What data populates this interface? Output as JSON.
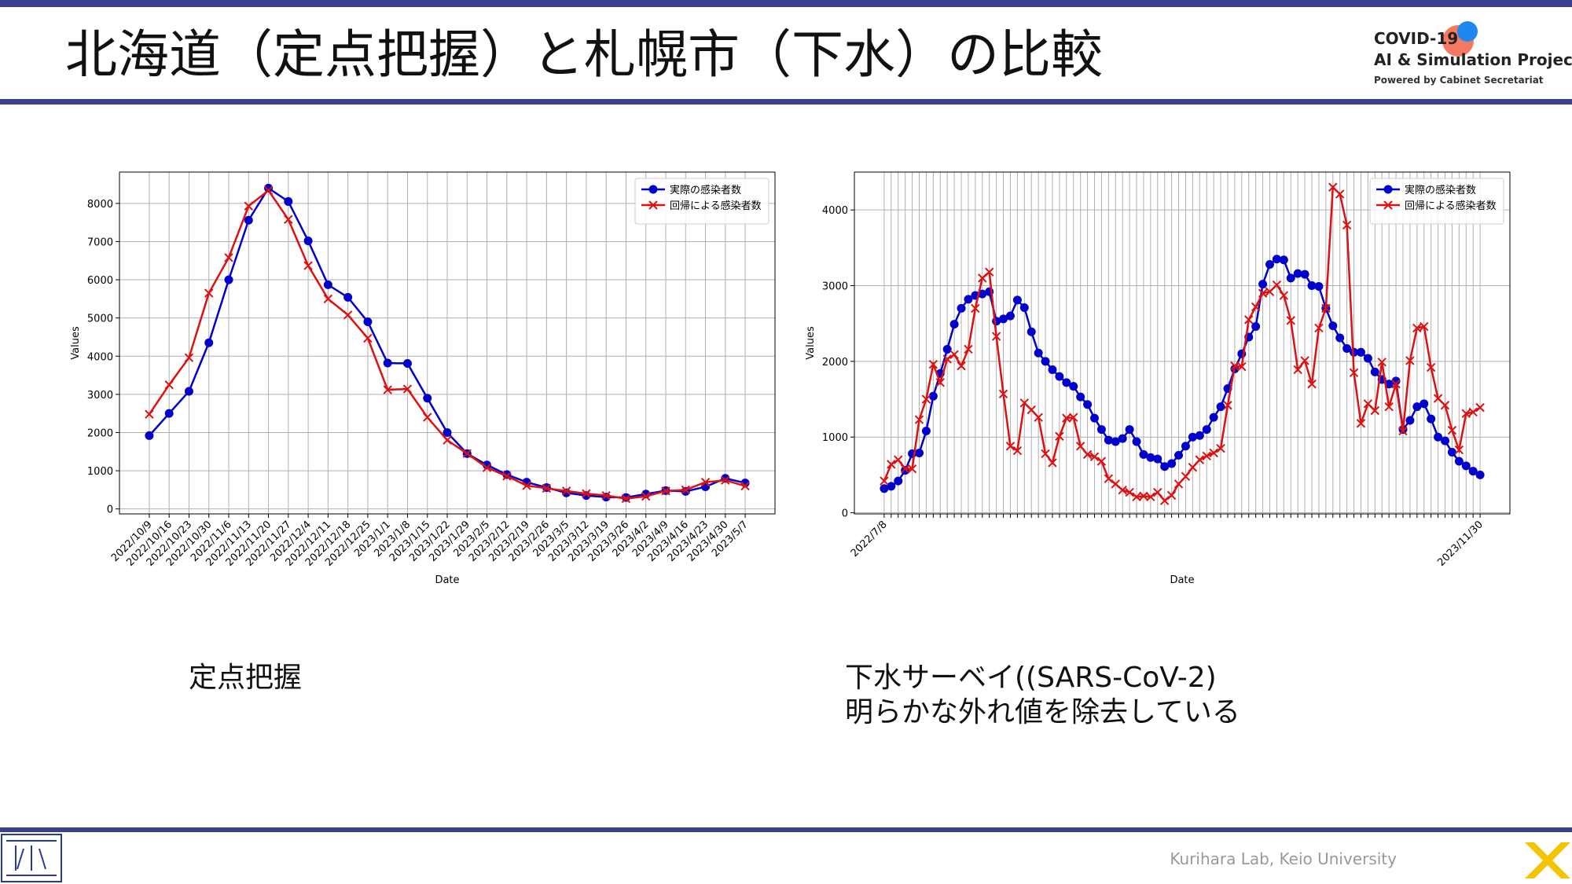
{
  "header": {
    "title": "北海道（定点把握）と札幌市（下水）の比較",
    "logo": {
      "line1": "COVID-19",
      "line2": "AI & Simulation Project",
      "line3": "Powered by Cabinet Secretariat"
    }
  },
  "chart_data": [
    {
      "type": "line",
      "xlabel": "Date",
      "ylabel": "Values",
      "grid": true,
      "legend": "upper right",
      "categories": [
        "2022/10/9",
        "2022/10/16",
        "2022/10/23",
        "2022/10/30",
        "2022/11/6",
        "2022/11/13",
        "2022/11/20",
        "2022/11/27",
        "2022/12/4",
        "2022/12/11",
        "2022/12/18",
        "2022/12/25",
        "2023/1/1",
        "2023/1/8",
        "2023/1/15",
        "2023/1/22",
        "2023/1/29",
        "2023/2/5",
        "2023/2/12",
        "2023/2/19",
        "2023/2/26",
        "2023/3/5",
        "2023/3/12",
        "2023/3/19",
        "2023/3/26",
        "2023/4/2",
        "2023/4/9",
        "2023/4/16",
        "2023/4/23",
        "2023/4/30",
        "2023/5/7"
      ],
      "series": [
        {
          "name": "実際の感染者数",
          "color": "#0000cc",
          "marker": "circle",
          "values": [
            1920,
            2500,
            3080,
            4350,
            6000,
            7560,
            8400,
            8050,
            7020,
            5870,
            5540,
            4900,
            3820,
            3810,
            2900,
            2000,
            1450,
            1150,
            900,
            700,
            560,
            420,
            350,
            310,
            300,
            390,
            480,
            460,
            580,
            800,
            680
          ]
        },
        {
          "name": "回帰による感染者数",
          "color": "#dd1111",
          "marker": "x",
          "values": [
            2480,
            3250,
            3960,
            5650,
            6580,
            7930,
            8340,
            7580,
            6370,
            5500,
            5080,
            4470,
            3120,
            3140,
            2400,
            1800,
            1450,
            1080,
            860,
            610,
            540,
            470,
            400,
            350,
            270,
            330,
            470,
            500,
            700,
            750,
            600
          ]
        }
      ],
      "ylim": [
        -130,
        8820
      ],
      "yticks": [
        0,
        1000,
        2000,
        3000,
        4000,
        5000,
        6000,
        7000,
        8000
      ]
    },
    {
      "type": "line",
      "xlabel": "Date",
      "ylabel": "Values",
      "grid": true,
      "legend": "upper right",
      "categories": [
        "2022/7/8",
        null,
        null,
        null,
        null,
        null,
        null,
        null,
        null,
        null,
        null,
        null,
        null,
        null,
        null,
        null,
        null,
        null,
        null,
        null,
        null,
        null,
        null,
        null,
        null,
        null,
        null,
        null,
        null,
        null,
        null,
        null,
        null,
        null,
        null,
        null,
        null,
        null,
        null,
        null,
        null,
        null,
        null,
        null,
        null,
        null,
        null,
        null,
        null,
        null,
        null,
        null,
        null,
        null,
        null,
        null,
        null,
        null,
        null,
        null,
        null,
        null,
        null,
        null,
        null,
        null,
        null,
        null,
        null,
        null,
        null,
        null,
        null,
        null,
        null,
        null,
        null,
        null,
        null,
        null,
        null,
        null,
        null,
        null,
        null,
        "2023/11/30"
      ],
      "series": [
        {
          "name": "実際の感染者数",
          "color": "#0000cc",
          "marker": "circle",
          "values": [
            320,
            350,
            420,
            560,
            780,
            790,
            1080,
            1540,
            1840,
            2160,
            2490,
            2700,
            2820,
            2870,
            2890,
            2920,
            2530,
            2560,
            2600,
            2810,
            2710,
            2390,
            2110,
            2000,
            1890,
            1800,
            1720,
            1670,
            1530,
            1430,
            1250,
            1100,
            960,
            940,
            980,
            1100,
            940,
            770,
            730,
            710,
            610,
            650,
            760,
            880,
            1000,
            1020,
            1100,
            1260,
            1400,
            1640,
            1900,
            2100,
            2320,
            2460,
            3020,
            3280,
            3350,
            3340,
            3100,
            3160,
            3150,
            3000,
            2990,
            2700,
            2470,
            2310,
            2170,
            2120,
            2120,
            2040,
            1860,
            1760,
            1700,
            1740,
            1100,
            1220,
            1400,
            1440,
            1240,
            1000,
            950,
            800,
            680,
            620,
            550,
            500
          ]
        },
        {
          "name": "回帰による感染者数",
          "color": "#dd1111",
          "marker": "x",
          "values": [
            420,
            640,
            700,
            580,
            580,
            1230,
            1500,
            1960,
            1720,
            2030,
            2090,
            1940,
            2160,
            2700,
            3100,
            3180,
            2330,
            1570,
            880,
            820,
            1450,
            1360,
            1260,
            780,
            660,
            1010,
            1250,
            1260,
            880,
            770,
            740,
            680,
            450,
            380,
            300,
            270,
            210,
            220,
            210,
            270,
            160,
            230,
            380,
            480,
            600,
            700,
            750,
            790,
            850,
            1420,
            1940,
            1930,
            2550,
            2720,
            2900,
            2920,
            3010,
            2870,
            2540,
            1890,
            2010,
            1700,
            2440,
            2700,
            4300,
            4210,
            3800,
            1850,
            1180,
            1440,
            1350,
            1990,
            1400,
            1700,
            1080,
            2010,
            2440,
            2460,
            1920,
            1510,
            1420,
            1090,
            830,
            1310,
            1330,
            1390
          ]
        }
      ],
      "ylim": [
        -15,
        4500
      ],
      "yticks": [
        0,
        1000,
        2000,
        3000,
        4000
      ]
    }
  ],
  "captions": {
    "left": "定点把握",
    "right_line1": "下水サーベイ((SARS-CoV-2)",
    "right_line2": "明らかな外れ値を除去している"
  },
  "footer": {
    "text": "Kurihara Lab, Keio University"
  }
}
